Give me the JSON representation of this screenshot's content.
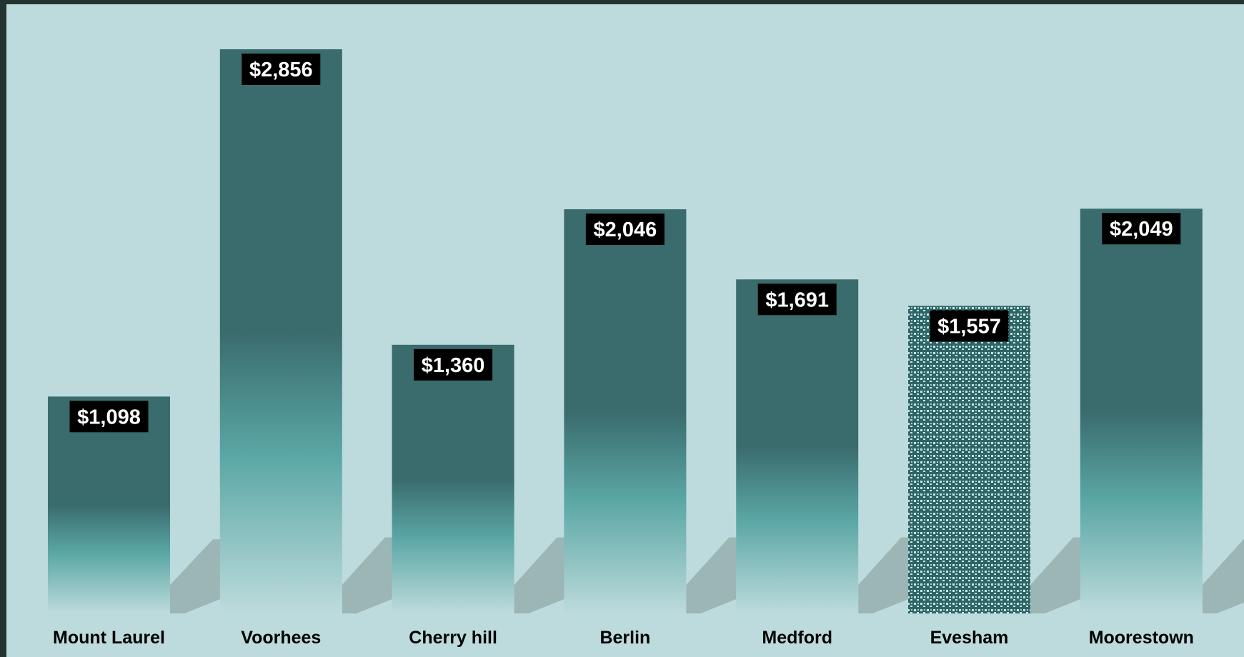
{
  "chart_data": {
    "type": "bar",
    "categories": [
      "Mount Laurel",
      "Voorhees",
      "Cherry hill",
      "Berlin",
      "Medford",
      "Evesham",
      "Moorestown"
    ],
    "values": [
      1098,
      2856,
      1360,
      2046,
      1691,
      1557,
      2049
    ],
    "data_labels": [
      "$1,098",
      "$2,856",
      "$1,360",
      "$2,046",
      "$1,691",
      "$1,557",
      "$2,049"
    ],
    "highlighted_category": "Evesham",
    "title": "",
    "xlabel": "",
    "ylabel": "",
    "ylim": [
      0,
      2856
    ],
    "grid": false,
    "legend": "none",
    "colors": {
      "background": "#bddbdc",
      "frame": "#233430",
      "bar_dark": "#3a6b6d",
      "bar_mid": "#5aa7a5",
      "bar_light": "#bddbdc",
      "pattern_dark": "#2e6466",
      "pattern_light": "#c8e6e4",
      "shadow": "#97aeae",
      "label_bg": "#000000",
      "label_text": "#ffffff"
    }
  }
}
